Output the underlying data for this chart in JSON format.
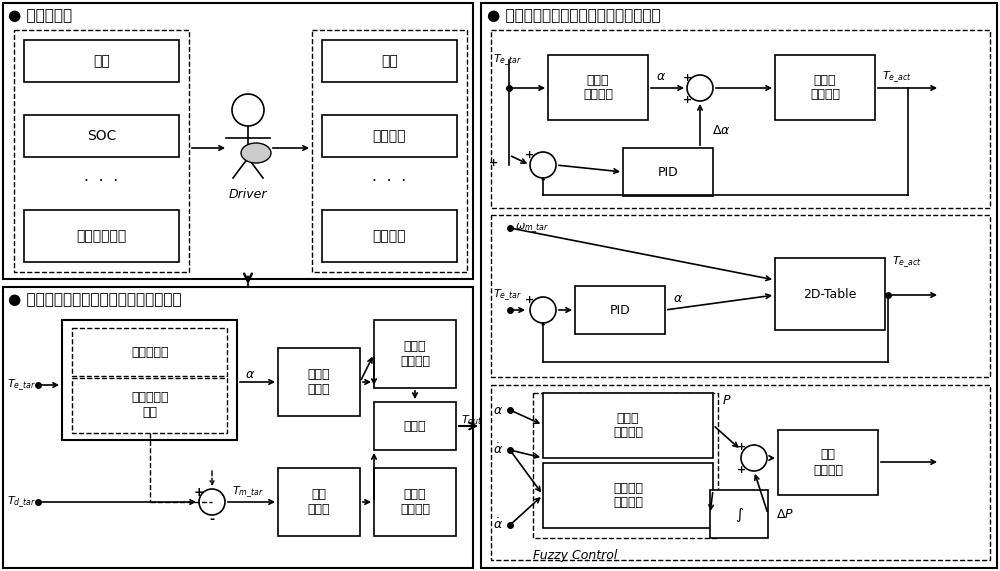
{
  "bg_color": "#ffffff",
  "title1": "● 驾驶员控制",
  "title2": "● 考虑驾驶员意图的离合器结合油压控制",
  "title3": "● 基于动态协调控制的整车需求扇矩分配",
  "box_cheshu": "车速",
  "box_soc": "SOC",
  "box_dots_left": "·  ·  ·",
  "box_qianqian": "当前车辆状态",
  "box_taban": "蹏板",
  "box_xuqiuniuju": "需求扭矩",
  "box_dots_right": "·  ·  ·",
  "box_qibu": "起步指令",
  "driver_label": "Driver",
  "box_fadongji_zhuansu": "发动机转速",
  "box_mubiao_jieqi": "目标节气门\n开度",
  "box_fadongji_kongzhiqi": "发动机\n控制器",
  "box_fadongji_shiji": "发动机\n实际扭矩",
  "box_heqi": "耦合器",
  "box_dianji_kongzhiqi": "电机\n控制器",
  "box_dianji_shiji": "发动机\n实际扭矩",
  "box_fadongji_niuju_bianhua": "发动机\n扭矩变化",
  "box_jieqimen_zhixing": "节气门\n执行机构",
  "box_PID1": "PID",
  "box_PID2": "PID",
  "box_2dtable": "2D-Table",
  "box_lihejian_chuya": "离合器\n初始压力",
  "box_lihejian_youya": "离合器油\n压变化率",
  "box_integral": "∫",
  "box_yeya_zhixing": "液压\n执行机构",
  "fuzzy_label": "Fuzzy Control"
}
